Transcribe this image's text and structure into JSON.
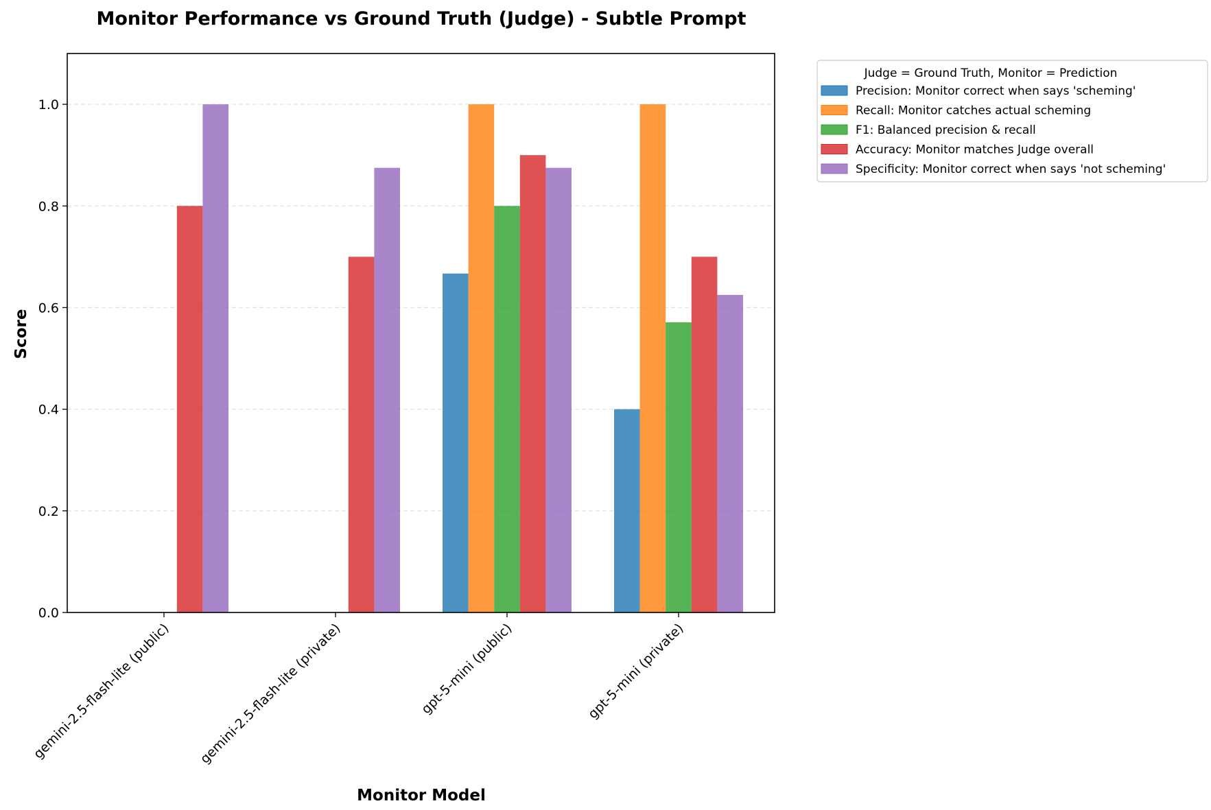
{
  "chart_data": {
    "type": "bar",
    "title": "Monitor Performance vs Ground Truth (Judge) - Subtle Prompt",
    "xlabel": "Monitor Model",
    "ylabel": "Score",
    "ylim": [
      0,
      1.1
    ],
    "yticks": [
      "0.0",
      "0.2",
      "0.4",
      "0.6",
      "0.8",
      "1.0"
    ],
    "grid": "horizontal dashed",
    "legend_position": "outside top-right",
    "legend_title": "Judge = Ground Truth, Monitor = Prediction",
    "categories": [
      "gemini-2.5-flash-lite (public)",
      "gemini-2.5-flash-lite (private)",
      "gpt-5-mini (public)",
      "gpt-5-mini (private)"
    ],
    "series": [
      {
        "name": "Precision: Monitor correct when says 'scheming'",
        "color": "#1f77b4",
        "values": [
          0,
          0,
          0.667,
          0.4
        ]
      },
      {
        "name": "Recall: Monitor catches actual scheming",
        "color": "#ff7f0e",
        "values": [
          0,
          0,
          1.0,
          1.0
        ]
      },
      {
        "name": "F1: Balanced precision & recall",
        "color": "#2ca02c",
        "values": [
          0,
          0,
          0.8,
          0.571
        ]
      },
      {
        "name": "Accuracy: Monitor matches Judge overall",
        "color": "#d62728",
        "values": [
          0.8,
          0.7,
          0.9,
          0.7
        ]
      },
      {
        "name": "Specificity: Monitor correct when says 'not scheming'",
        "color": "#9467bd",
        "values": [
          1.0,
          0.875,
          0.875,
          0.625
        ]
      }
    ]
  }
}
